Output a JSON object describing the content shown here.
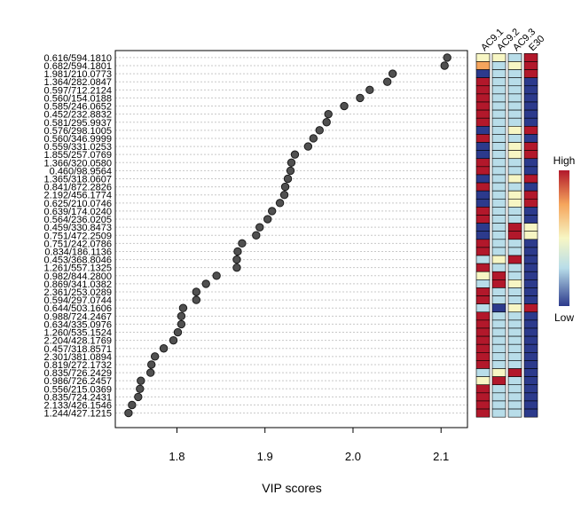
{
  "chart_data": {
    "type": "scatter",
    "xlabel": "VIP scores",
    "xlim": [
      1.73,
      2.13
    ],
    "xticks": [
      1.8,
      1.9,
      2.0,
      2.1
    ],
    "xtick_labels": [
      "1.8",
      "1.9",
      "2.0",
      "2.1"
    ],
    "grid": "dotted horizontal",
    "features": [
      "0.616/594.1810",
      "0.682/594.1801",
      "1.981/210.0773",
      "1.364/282.0847",
      "0.597/712.2124",
      "0.560/154.0188",
      "0.585/246.0652",
      "0.452/232.8832",
      "0.581/295.9937",
      "0.576/298.1005",
      "0.560/346.9999",
      "0.559/331.0253",
      "1.855/257.0769",
      "1.366/320.0580",
      "0.460/98.9564",
      "1.365/318.0607",
      "0.841/872.2826",
      "2.192/456.1774",
      "0.625/210.0746",
      "0.639/174.0240",
      "0.564/236.0205",
      "0.459/330.8473",
      "0.751/472.2509",
      "0.751/242.0786",
      "0.834/186.1136",
      "0.453/368.8046",
      "1.261/557.1325",
      "0.982/844.2800",
      "0.869/341.0382",
      "2.361/253.0289",
      "0.594/297.0744",
      "0.644/503.1606",
      "0.988/724.2467",
      "0.634/335.0976",
      "1.260/535.1524",
      "2.204/428.1769",
      "0.457/318.8571",
      "2.301/381.0894",
      "0.819/272.1732",
      "0.835/726.2429",
      "0.986/726.2457",
      "0.556/215.0369",
      "0.835/724.2431",
      "2.133/426.1546",
      "1.244/427.1215"
    ],
    "values": [
      2.107,
      2.104,
      2.045,
      2.039,
      2.019,
      2.008,
      1.99,
      1.972,
      1.97,
      1.962,
      1.955,
      1.949,
      1.934,
      1.93,
      1.929,
      1.926,
      1.923,
      1.922,
      1.917,
      1.908,
      1.903,
      1.894,
      1.89,
      1.874,
      1.869,
      1.868,
      1.868,
      1.845,
      1.833,
      1.822,
      1.822,
      1.807,
      1.805,
      1.805,
      1.801,
      1.796,
      1.785,
      1.775,
      1.771,
      1.77,
      1.759,
      1.758,
      1.756,
      1.749,
      1.745
    ],
    "heatmap_columns": [
      "AC9.1",
      "AC9.2",
      "AC9.3",
      "E30"
    ],
    "heatmap_levels": [
      [
        3,
        3,
        2,
        5
      ],
      [
        4,
        2,
        3,
        5
      ],
      [
        1,
        2,
        2,
        5
      ],
      [
        5,
        2,
        2,
        1
      ],
      [
        5,
        2,
        2,
        1
      ],
      [
        5,
        2,
        2,
        1
      ],
      [
        5,
        2,
        2,
        1
      ],
      [
        5,
        2,
        2,
        1
      ],
      [
        5,
        2,
        2,
        1
      ],
      [
        1,
        2,
        3,
        5
      ],
      [
        5,
        2,
        2,
        1
      ],
      [
        1,
        2,
        3,
        5
      ],
      [
        1,
        2,
        3,
        5
      ],
      [
        5,
        2,
        2,
        1
      ],
      [
        5,
        2,
        2,
        1
      ],
      [
        1,
        2,
        3,
        5
      ],
      [
        5,
        2,
        2,
        1
      ],
      [
        1,
        2,
        3,
        5
      ],
      [
        1,
        2,
        3,
        5
      ],
      [
        5,
        2,
        2,
        1
      ],
      [
        5,
        2,
        2,
        1
      ],
      [
        1,
        2,
        5,
        3
      ],
      [
        1,
        2,
        5,
        3
      ],
      [
        5,
        2,
        2,
        1
      ],
      [
        5,
        2,
        2,
        1
      ],
      [
        2,
        3,
        5,
        1
      ],
      [
        5,
        2,
        2,
        1
      ],
      [
        3,
        5,
        2,
        1
      ],
      [
        2,
        5,
        3,
        1
      ],
      [
        5,
        2,
        2,
        1
      ],
      [
        5,
        2,
        2,
        1
      ],
      [
        2,
        1,
        3,
        5
      ],
      [
        5,
        2,
        2,
        1
      ],
      [
        5,
        2,
        2,
        1
      ],
      [
        5,
        2,
        2,
        1
      ],
      [
        5,
        2,
        2,
        1
      ],
      [
        5,
        2,
        2,
        1
      ],
      [
        5,
        2,
        2,
        1
      ],
      [
        5,
        2,
        2,
        1
      ],
      [
        2,
        3,
        5,
        1
      ],
      [
        3,
        5,
        2,
        1
      ],
      [
        5,
        2,
        2,
        1
      ],
      [
        5,
        2,
        2,
        1
      ],
      [
        5,
        2,
        2,
        1
      ],
      [
        5,
        2,
        2,
        1
      ]
    ],
    "color_scale": [
      "#2c3a8c",
      "#b8dde9",
      "#f7f6c4",
      "#f5a55c",
      "#b2182b"
    ],
    "legend": {
      "high": "High",
      "low": "Low",
      "position": "right"
    }
  }
}
